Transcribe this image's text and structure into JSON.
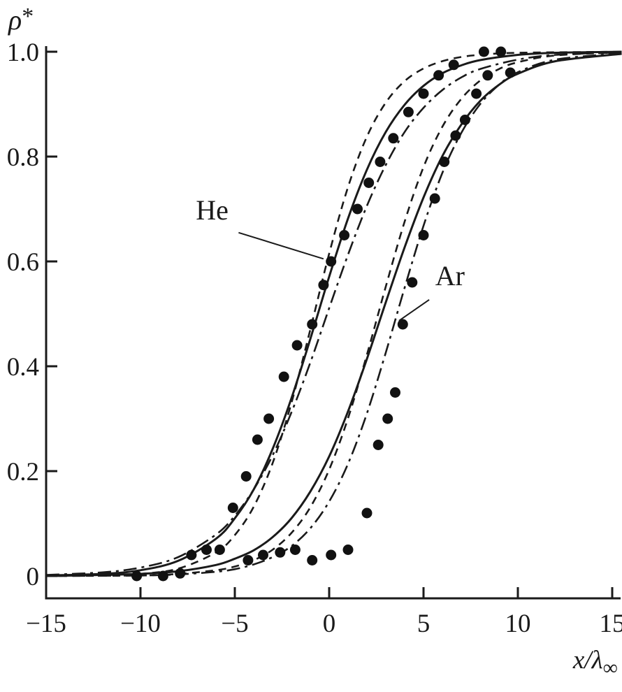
{
  "figure": {
    "background": "#ffffff",
    "ink_color": "#1a1a1a"
  },
  "chart_data": {
    "type": "line",
    "title": "",
    "xlabel": "x/λ∞",
    "xlabel_parts": {
      "main": "x/λ",
      "subscript": "∞"
    },
    "ylabel": "ρ*",
    "ylabel_parts": {
      "main": "ρ",
      "superscript": "*"
    },
    "xlim": [
      -15,
      15
    ],
    "ylim": [
      0,
      1.0
    ],
    "x_ticks": [
      -15,
      -10,
      -5,
      0,
      5,
      10,
      15
    ],
    "x_tick_labels": [
      "−15",
      "−10",
      "−5",
      "0",
      "5",
      "10",
      "15"
    ],
    "y_ticks": [
      0,
      0.2,
      0.4,
      0.6,
      0.8,
      1.0
    ],
    "y_tick_labels": [
      "0",
      "0.2",
      "0.4",
      "0.6",
      "0.8",
      "1.0"
    ],
    "grid": false,
    "legend": "none",
    "series": [
      {
        "gas": "He",
        "line_style": "solid",
        "points": [
          [
            -15,
            0.001
          ],
          [
            -12,
            0.004
          ],
          [
            -10,
            0.011
          ],
          [
            -8,
            0.029
          ],
          [
            -6,
            0.071
          ],
          [
            -5,
            0.11
          ],
          [
            -4,
            0.165
          ],
          [
            -3,
            0.242
          ],
          [
            -2,
            0.339
          ],
          [
            -1,
            0.452
          ],
          [
            0,
            0.571
          ],
          [
            1,
            0.682
          ],
          [
            2,
            0.775
          ],
          [
            3,
            0.847
          ],
          [
            4,
            0.899
          ],
          [
            5,
            0.935
          ],
          [
            6,
            0.959
          ],
          [
            7,
            0.974
          ],
          [
            8,
            0.984
          ],
          [
            10,
            0.994
          ],
          [
            12,
            0.998
          ],
          [
            15.5,
            1.0
          ]
        ]
      },
      {
        "gas": "He",
        "line_style": "dashed",
        "points": [
          [
            -15,
            0.0
          ],
          [
            -12,
            0.001
          ],
          [
            -10,
            0.004
          ],
          [
            -8,
            0.014
          ],
          [
            -6,
            0.045
          ],
          [
            -5,
            0.078
          ],
          [
            -4,
            0.132
          ],
          [
            -3,
            0.215
          ],
          [
            -2,
            0.33
          ],
          [
            -1,
            0.47
          ],
          [
            0,
            0.615
          ],
          [
            1,
            0.742
          ],
          [
            2,
            0.838
          ],
          [
            3,
            0.903
          ],
          [
            4,
            0.944
          ],
          [
            5,
            0.968
          ],
          [
            6,
            0.982
          ],
          [
            7,
            0.99
          ],
          [
            8,
            0.994
          ],
          [
            10,
            0.998
          ],
          [
            15.5,
            1.0
          ]
        ]
      },
      {
        "gas": "He",
        "line_style": "dashdot",
        "points": [
          [
            -15,
            0.002
          ],
          [
            -12,
            0.007
          ],
          [
            -10,
            0.016
          ],
          [
            -8,
            0.036
          ],
          [
            -6,
            0.079
          ],
          [
            -5,
            0.115
          ],
          [
            -4,
            0.165
          ],
          [
            -3,
            0.23
          ],
          [
            -2,
            0.312
          ],
          [
            -1,
            0.407
          ],
          [
            0,
            0.511
          ],
          [
            1,
            0.613
          ],
          [
            2,
            0.706
          ],
          [
            3,
            0.784
          ],
          [
            4,
            0.847
          ],
          [
            5,
            0.893
          ],
          [
            6,
            0.927
          ],
          [
            7,
            0.951
          ],
          [
            8,
            0.967
          ],
          [
            10,
            0.985
          ],
          [
            12,
            0.994
          ],
          [
            15.5,
            0.999
          ]
        ]
      },
      {
        "gas": "Ar",
        "line_style": "solid",
        "points": [
          [
            -15,
            0.0
          ],
          [
            -12,
            0.002
          ],
          [
            -10,
            0.004
          ],
          [
            -8,
            0.009
          ],
          [
            -6,
            0.021
          ],
          [
            -5,
            0.033
          ],
          [
            -4,
            0.049
          ],
          [
            -3,
            0.074
          ],
          [
            -2,
            0.11
          ],
          [
            -1,
            0.161
          ],
          [
            0,
            0.228
          ],
          [
            1,
            0.314
          ],
          [
            2,
            0.414
          ],
          [
            3,
            0.522
          ],
          [
            4,
            0.627
          ],
          [
            5,
            0.722
          ],
          [
            6,
            0.801
          ],
          [
            7,
            0.861
          ],
          [
            8,
            0.906
          ],
          [
            9,
            0.937
          ],
          [
            10,
            0.958
          ],
          [
            12,
            0.982
          ],
          [
            15.5,
            0.996
          ]
        ]
      },
      {
        "gas": "Ar",
        "line_style": "dashed",
        "points": [
          [
            -15,
            0.0
          ],
          [
            -10,
            0.001
          ],
          [
            -8,
            0.004
          ],
          [
            -6,
            0.011
          ],
          [
            -5,
            0.018
          ],
          [
            -4,
            0.03
          ],
          [
            -3,
            0.05
          ],
          [
            -2,
            0.082
          ],
          [
            -1,
            0.131
          ],
          [
            0,
            0.203
          ],
          [
            1,
            0.301
          ],
          [
            2,
            0.422
          ],
          [
            3,
            0.552
          ],
          [
            4,
            0.676
          ],
          [
            5,
            0.78
          ],
          [
            6,
            0.857
          ],
          [
            7,
            0.91
          ],
          [
            8,
            0.945
          ],
          [
            9,
            0.967
          ],
          [
            10,
            0.98
          ],
          [
            12,
            0.993
          ],
          [
            15.5,
            0.999
          ]
        ]
      },
      {
        "gas": "Ar",
        "line_style": "dashdot",
        "points": [
          [
            -15,
            0.0
          ],
          [
            -10,
            0.001
          ],
          [
            -8,
            0.003
          ],
          [
            -6,
            0.008
          ],
          [
            -5,
            0.013
          ],
          [
            -4,
            0.022
          ],
          [
            -3,
            0.036
          ],
          [
            -2,
            0.057
          ],
          [
            -1,
            0.091
          ],
          [
            0,
            0.142
          ],
          [
            1,
            0.214
          ],
          [
            2,
            0.31
          ],
          [
            3,
            0.426
          ],
          [
            4,
            0.55
          ],
          [
            5,
            0.668
          ],
          [
            6,
            0.769
          ],
          [
            7,
            0.845
          ],
          [
            8,
            0.9
          ],
          [
            9,
            0.937
          ],
          [
            10,
            0.961
          ],
          [
            12,
            0.985
          ],
          [
            15.5,
            0.997
          ]
        ]
      }
    ],
    "scatter": [
      {
        "gas": "He",
        "marker": "filled-circle",
        "points": [
          [
            -7.3,
            0.04
          ],
          [
            -6.5,
            0.05
          ],
          [
            -5.8,
            0.05
          ],
          [
            -5.1,
            0.13
          ],
          [
            -4.4,
            0.19
          ],
          [
            -3.8,
            0.26
          ],
          [
            -3.2,
            0.3
          ],
          [
            -2.4,
            0.38
          ],
          [
            -1.7,
            0.44
          ],
          [
            -0.9,
            0.48
          ],
          [
            -0.3,
            0.555
          ],
          [
            0.1,
            0.6
          ],
          [
            0.8,
            0.65
          ],
          [
            1.5,
            0.7
          ],
          [
            2.1,
            0.75
          ],
          [
            2.7,
            0.79
          ],
          [
            3.4,
            0.835
          ],
          [
            4.2,
            0.885
          ],
          [
            5.0,
            0.92
          ],
          [
            5.8,
            0.955
          ],
          [
            6.6,
            0.975
          ],
          [
            8.2,
            1.0
          ],
          [
            9.1,
            1.0
          ]
        ]
      },
      {
        "gas": "Ar",
        "marker": "filled-circle",
        "points": [
          [
            -10.2,
            0.0
          ],
          [
            -8.8,
            0.0
          ],
          [
            -7.9,
            0.005
          ],
          [
            -4.3,
            0.03
          ],
          [
            -3.5,
            0.04
          ],
          [
            -2.6,
            0.045
          ],
          [
            -1.8,
            0.05
          ],
          [
            -0.9,
            0.03
          ],
          [
            0.1,
            0.04
          ],
          [
            1.0,
            0.05
          ],
          [
            2.0,
            0.12
          ],
          [
            2.6,
            0.25
          ],
          [
            3.1,
            0.3
          ],
          [
            3.5,
            0.35
          ],
          [
            3.9,
            0.48
          ],
          [
            4.4,
            0.56
          ],
          [
            5.0,
            0.65
          ],
          [
            5.6,
            0.72
          ],
          [
            6.1,
            0.79
          ],
          [
            6.7,
            0.84
          ],
          [
            7.2,
            0.87
          ],
          [
            7.8,
            0.92
          ],
          [
            8.4,
            0.955
          ],
          [
            9.6,
            0.96
          ]
        ]
      }
    ],
    "annotations": [
      {
        "text": "He",
        "x": -6.2,
        "y": 0.68,
        "line_from": [
          -4.8,
          0.655
        ],
        "line_to": [
          -0.3,
          0.605
        ]
      },
      {
        "text": "Ar",
        "x": 6.4,
        "y": 0.555,
        "line_from": [
          5.3,
          0.527
        ],
        "line_to": [
          3.7,
          0.487
        ]
      }
    ]
  }
}
